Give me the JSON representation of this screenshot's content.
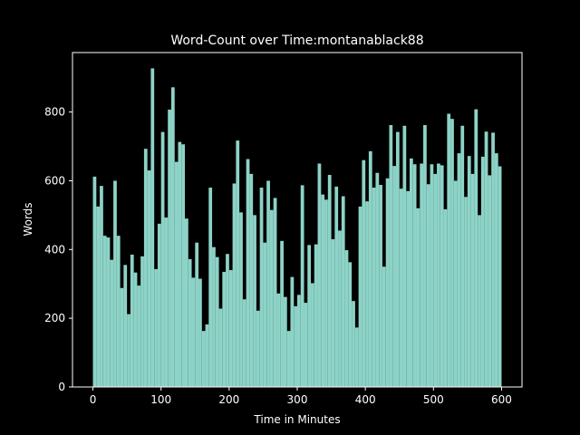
{
  "chart_data": {
    "type": "bar",
    "title": "Word-Count over Time:montanablack88",
    "x_label": "Time in Minutes",
    "y_label": "Words",
    "color": "#8dd3c7",
    "x": [
      0,
      5,
      10,
      15,
      20,
      25,
      30,
      35,
      40,
      45,
      50,
      55,
      60,
      65,
      70,
      75,
      80,
      85,
      90,
      95,
      100,
      105,
      110,
      115,
      120,
      125,
      130,
      135,
      140,
      145,
      150,
      155,
      160,
      165,
      170,
      175,
      180,
      185,
      190,
      195,
      200,
      205,
      210,
      215,
      220,
      225,
      230,
      235,
      240,
      245,
      250,
      255,
      260,
      265,
      270,
      275,
      280,
      285,
      290,
      295,
      300,
      305,
      310,
      315,
      320,
      325,
      330,
      335,
      340,
      345,
      350,
      355,
      360,
      365,
      370,
      375,
      380,
      385,
      390,
      395,
      400,
      405,
      410,
      415,
      420,
      425,
      430,
      435,
      440,
      445,
      450,
      455,
      460,
      465,
      470,
      475,
      480,
      485,
      490,
      495,
      500,
      505,
      510,
      515,
      520,
      525,
      530,
      535,
      540,
      545,
      550,
      555,
      560,
      565,
      570,
      575,
      580,
      585,
      590,
      595
    ],
    "values": [
      612,
      525,
      585,
      440,
      435,
      370,
      600,
      440,
      288,
      355,
      212,
      385,
      333,
      295,
      380,
      693,
      630,
      927,
      343,
      475,
      742,
      493,
      807,
      872,
      655,
      713,
      706,
      490,
      372,
      318,
      420,
      315,
      163,
      182,
      580,
      407,
      378,
      228,
      335,
      387,
      340,
      592,
      717,
      508,
      255,
      663,
      620,
      500,
      222,
      580,
      420,
      600,
      515,
      550,
      272,
      425,
      262,
      163,
      320,
      235,
      268,
      587,
      245,
      413,
      302,
      415,
      650,
      560,
      545,
      617,
      430,
      583,
      455,
      555,
      398,
      363,
      250,
      173,
      525,
      660,
      540,
      686,
      580,
      623,
      588,
      350,
      607,
      762,
      643,
      742,
      577,
      760,
      570,
      665,
      648,
      520,
      650,
      762,
      590,
      648,
      620,
      650,
      645,
      517,
      795,
      780,
      600,
      680,
      760,
      553,
      672,
      620,
      808,
      500,
      670,
      743,
      616,
      740,
      680,
      642
    ],
    "xlim": [
      -30,
      630
    ],
    "ylim": [
      0,
      973
    ],
    "xticks": [
      0,
      100,
      200,
      300,
      400,
      500,
      600
    ],
    "yticks": [
      0,
      200,
      400,
      600,
      800
    ]
  }
}
